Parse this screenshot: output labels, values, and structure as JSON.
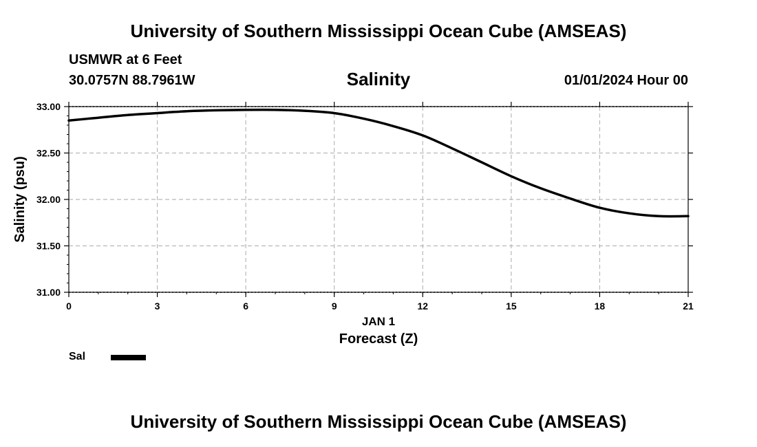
{
  "header": {
    "title": "University of Southern Mississippi Ocean Cube (AMSEAS)",
    "station": "USMWR at 6 Feet",
    "coords": "30.0757N  88.7961W",
    "subtitle": "Salinity",
    "datetime": "01/01/2024 Hour 00"
  },
  "footer": {
    "title": "University of Southern Mississippi Ocean Cube (AMSEAS)"
  },
  "legend": {
    "label": "Sal",
    "color": "#000000"
  },
  "chart_data": {
    "type": "line",
    "title": "Salinity",
    "xlabel": "Forecast (Z)",
    "xsublabel": "JAN 1",
    "ylabel": "Salinity (psu)",
    "xlim": [
      0,
      21
    ],
    "ylim": [
      31.0,
      33.0
    ],
    "xticks": [
      0,
      3,
      6,
      9,
      12,
      15,
      18,
      21
    ],
    "xtick_labels": [
      "0",
      "3",
      "6",
      "9",
      "12",
      "15",
      "18",
      "21"
    ],
    "yticks": [
      31.0,
      31.5,
      32.0,
      32.5,
      33.0
    ],
    "ytick_labels": [
      "31.00",
      "31.50",
      "32.00",
      "32.50",
      "33.00"
    ],
    "grid": true,
    "series": [
      {
        "name": "Sal",
        "color": "#000000",
        "x": [
          0,
          1,
          2,
          3,
          4,
          5,
          6,
          7,
          8,
          9,
          10,
          11,
          12,
          13,
          14,
          15,
          16,
          17,
          18,
          19,
          20,
          21
        ],
        "values": [
          32.85,
          32.88,
          32.91,
          32.93,
          32.95,
          32.96,
          32.965,
          32.965,
          32.955,
          32.93,
          32.87,
          32.79,
          32.69,
          32.55,
          32.4,
          32.25,
          32.12,
          32.01,
          31.91,
          31.85,
          31.82,
          31.82
        ]
      }
    ]
  }
}
